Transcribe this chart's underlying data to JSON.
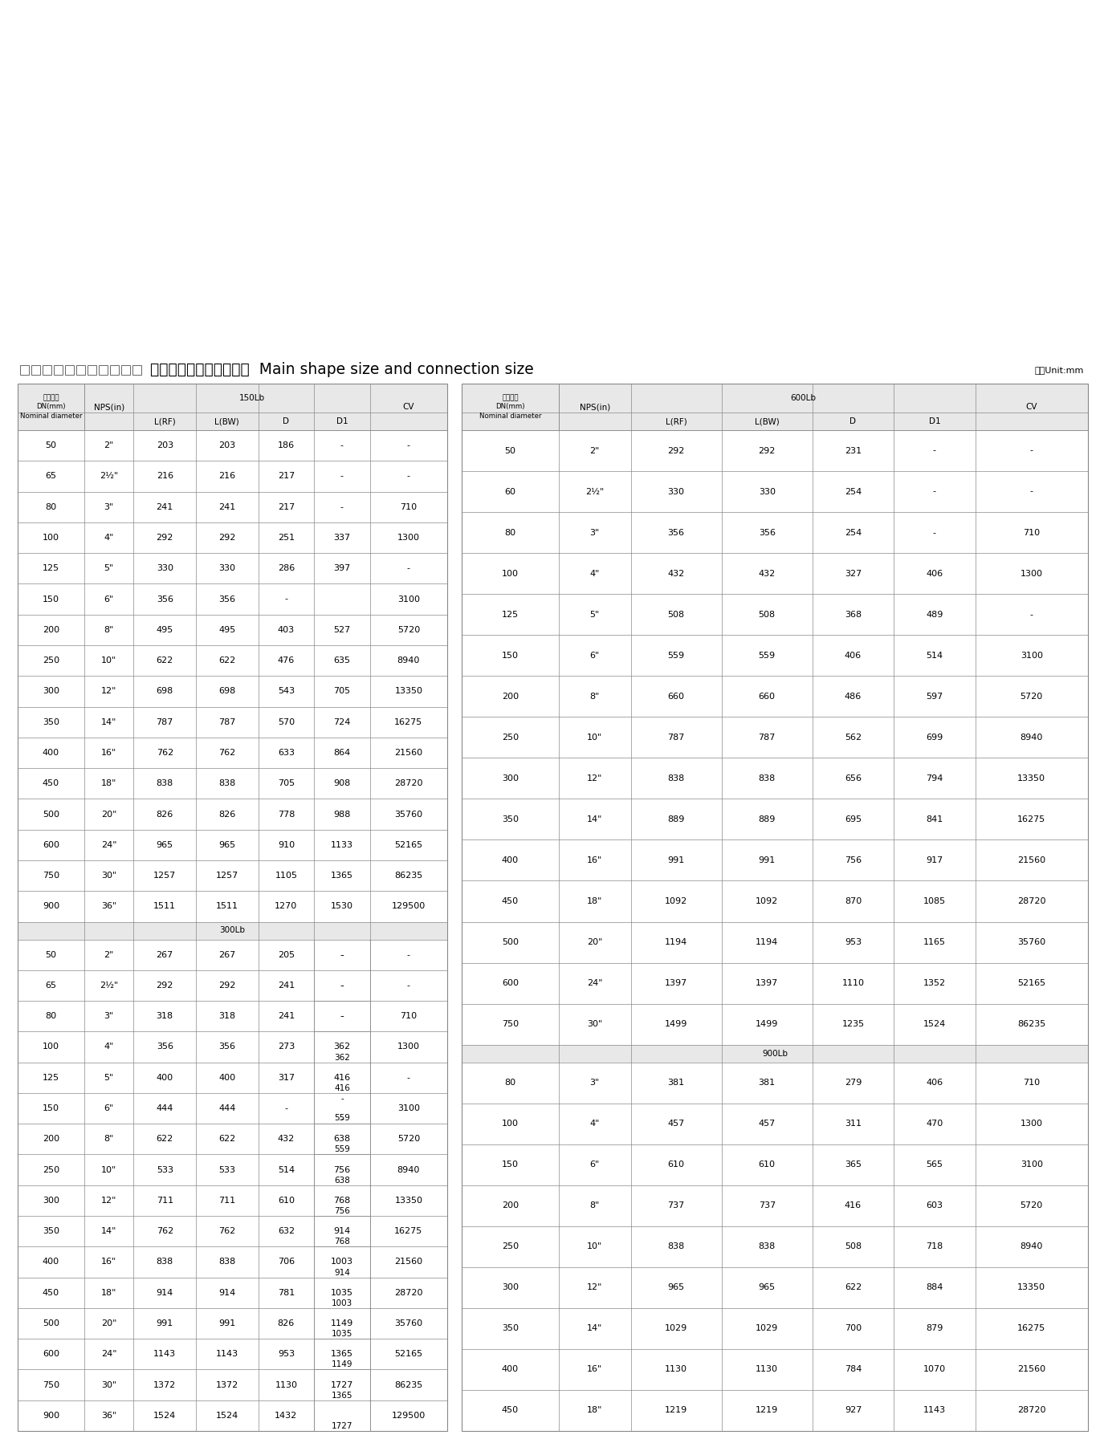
{
  "title_chinese": "公称通径主要外形尺寸及连接尺寸",
  "title_english": "Main shape size and connection size",
  "unit_label": "单位Unit:mm",
  "bg_color": "#ffffff",
  "border_color": "#888888",
  "header_bg": "#e8e8e8",
  "section_bg": "#e8e8e8",
  "left_table": {
    "sections": [
      {
        "label": "150Lb",
        "rows": [
          [
            "50",
            "2\"",
            "203",
            "203",
            "186",
            "-",
            "-"
          ],
          [
            "65",
            "2½\"",
            "216",
            "216",
            "217",
            "-",
            "-"
          ],
          [
            "80",
            "3\"",
            "241",
            "241",
            "217",
            "-",
            "710"
          ],
          [
            "100",
            "4\"",
            "292",
            "292",
            "251",
            "337",
            "1300"
          ],
          [
            "125",
            "5\"",
            "330",
            "330",
            "286",
            "397",
            "-"
          ],
          [
            "150",
            "6\"",
            "356",
            "356",
            "-",
            "",
            "3100"
          ],
          [
            "200",
            "8\"",
            "495",
            "495",
            "403",
            "527",
            "5720"
          ],
          [
            "250",
            "10\"",
            "622",
            "622",
            "476",
            "635",
            "8940"
          ],
          [
            "300",
            "12\"",
            "698",
            "698",
            "543",
            "705",
            "13350"
          ],
          [
            "350",
            "14\"",
            "787",
            "787",
            "570",
            "724",
            "16275"
          ],
          [
            "400",
            "16\"",
            "762",
            "762",
            "633",
            "864",
            "21560"
          ],
          [
            "450",
            "18\"",
            "838",
            "838",
            "705",
            "908",
            "28720"
          ],
          [
            "500",
            "20\"",
            "826",
            "826",
            "778",
            "988",
            "35760"
          ],
          [
            "600",
            "24\"",
            "965",
            "965",
            "910",
            "1133",
            "52165"
          ],
          [
            "750",
            "30\"",
            "1257",
            "1257",
            "1105",
            "1365",
            "86235"
          ],
          [
            "900",
            "36\"",
            "1511",
            "1511",
            "1270",
            "1530",
            "129500"
          ]
        ],
        "d1_special": false
      },
      {
        "label": "300Lb",
        "rows": [
          [
            "50",
            "2\"",
            "267",
            "267",
            "205",
            "-",
            "-"
          ],
          [
            "65",
            "2½\"",
            "292",
            "292",
            "241",
            "-",
            "-"
          ],
          [
            "80",
            "3\"",
            "318",
            "318",
            "241",
            "-",
            "710"
          ],
          [
            "100",
            "4\"",
            "356",
            "356",
            "273",
            "362",
            "1300"
          ],
          [
            "125",
            "5\"",
            "400",
            "400",
            "317",
            "416",
            "-"
          ],
          [
            "150",
            "6\"",
            "444",
            "444",
            "-",
            "-\n559",
            "3100"
          ],
          [
            "200",
            "8\"",
            "622",
            "622",
            "432",
            "638",
            "5720"
          ],
          [
            "250",
            "10\"",
            "533",
            "533",
            "514",
            "756",
            "8940"
          ],
          [
            "300",
            "12\"",
            "711",
            "711",
            "610",
            "768",
            "13350"
          ],
          [
            "350",
            "14\"",
            "762",
            "762",
            "632",
            "914",
            "16275"
          ],
          [
            "400",
            "16\"",
            "838",
            "838",
            "706",
            "1003",
            "21560"
          ],
          [
            "450",
            "18\"",
            "914",
            "914",
            "781",
            "1035",
            "28720"
          ],
          [
            "500",
            "20\"",
            "991",
            "991",
            "826",
            "1149",
            "35760"
          ],
          [
            "600",
            "24\"",
            "1143",
            "1143",
            "953",
            "1365",
            "52165"
          ],
          [
            "750",
            "30\"",
            "1372",
            "1372",
            "1130",
            "1727",
            "86235"
          ],
          [
            "900",
            "36\"",
            "1524",
            "1524",
            "1432",
            "",
            "129500"
          ]
        ],
        "d1_special": true,
        "d1_border_vals": [
          "-",
          "-",
          "-",
          "362\n416",
          "",
          "559\n638",
          "756",
          "768",
          "914",
          "1003\n1035",
          "1149",
          "1365\n1727",
          ""
        ]
      }
    ]
  },
  "right_table": {
    "sections": [
      {
        "label": "600Lb",
        "rows": [
          [
            "50",
            "2\"",
            "292",
            "292",
            "231",
            "-",
            "-"
          ],
          [
            "60",
            "2½\"",
            "330",
            "330",
            "254",
            "-",
            "-"
          ],
          [
            "80",
            "3\"",
            "356",
            "356",
            "254",
            "-",
            "710"
          ],
          [
            "100",
            "4\"",
            "432",
            "432",
            "327",
            "406",
            "1300"
          ],
          [
            "125",
            "5\"",
            "508",
            "508",
            "368",
            "489",
            "-"
          ],
          [
            "150",
            "6\"",
            "559",
            "559",
            "406",
            "514",
            "3100"
          ],
          [
            "200",
            "8\"",
            "660",
            "660",
            "486",
            "597",
            "5720"
          ],
          [
            "250",
            "10\"",
            "787",
            "787",
            "562",
            "699",
            "8940"
          ],
          [
            "300",
            "12\"",
            "838",
            "838",
            "656",
            "794",
            "13350"
          ],
          [
            "350",
            "14\"",
            "889",
            "889",
            "695",
            "841",
            "16275"
          ],
          [
            "400",
            "16\"",
            "991",
            "991",
            "756",
            "917",
            "21560"
          ],
          [
            "450",
            "18\"",
            "1092",
            "1092",
            "870",
            "1085",
            "28720"
          ],
          [
            "500",
            "20\"",
            "1194",
            "1194",
            "953",
            "1165",
            "35760"
          ],
          [
            "600",
            "24\"",
            "1397",
            "1397",
            "1110",
            "1352",
            "52165"
          ],
          [
            "750",
            "30\"",
            "1499",
            "1499",
            "1235",
            "1524",
            "86235"
          ]
        ]
      },
      {
        "label": "900Lb",
        "rows": [
          [
            "80",
            "3\"",
            "381",
            "381",
            "279",
            "406",
            "710"
          ],
          [
            "100",
            "4\"",
            "457",
            "457",
            "311",
            "470",
            "1300"
          ],
          [
            "150",
            "6\"",
            "610",
            "610",
            "365",
            "565",
            "3100"
          ],
          [
            "200",
            "8\"",
            "737",
            "737",
            "416",
            "603",
            "5720"
          ],
          [
            "250",
            "10\"",
            "838",
            "838",
            "508",
            "718",
            "8940"
          ],
          [
            "300",
            "12\"",
            "965",
            "965",
            "622",
            "884",
            "13350"
          ],
          [
            "350",
            "14\"",
            "1029",
            "1029",
            "700",
            "879",
            "16275"
          ],
          [
            "400",
            "16\"",
            "1130",
            "1130",
            "784",
            "1070",
            "21560"
          ],
          [
            "450",
            "18\"",
            "1219",
            "1219",
            "927",
            "1143",
            "28720"
          ]
        ]
      }
    ]
  }
}
